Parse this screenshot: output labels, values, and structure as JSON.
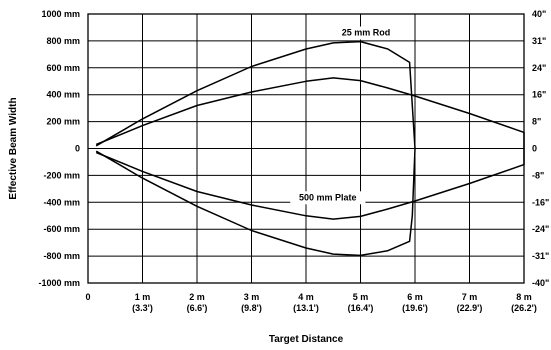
{
  "chart_data": {
    "type": "line",
    "xlabel": "Target Distance",
    "ylabel": "Effective Beam Width",
    "xlim": [
      0,
      8
    ],
    "ylim": [
      -1000,
      1000
    ],
    "grid": true,
    "x_ticks": [
      {
        "value": 0,
        "label": "0",
        "sub": ""
      },
      {
        "value": 1,
        "label": "1 m",
        "sub": "(3.3')"
      },
      {
        "value": 2,
        "label": "2 m",
        "sub": "(6.6')"
      },
      {
        "value": 3,
        "label": "3 m",
        "sub": "(9.8')"
      },
      {
        "value": 4,
        "label": "4 m",
        "sub": "(13.1')"
      },
      {
        "value": 5,
        "label": "5 m",
        "sub": "(16.4')"
      },
      {
        "value": 6,
        "label": "6 m",
        "sub": "(19.6')"
      },
      {
        "value": 7,
        "label": "7 m",
        "sub": "(22.9')"
      },
      {
        "value": 8,
        "label": "8 m",
        "sub": "(26.2')"
      }
    ],
    "y_ticks_left": [
      {
        "value": 1000,
        "label": "1000 mm"
      },
      {
        "value": 800,
        "label": "800 mm"
      },
      {
        "value": 600,
        "label": "600 mm"
      },
      {
        "value": 400,
        "label": "400 mm"
      },
      {
        "value": 200,
        "label": "200 mm"
      },
      {
        "value": 0,
        "label": "0"
      },
      {
        "value": -200,
        "label": "-200 mm"
      },
      {
        "value": -400,
        "label": "-400 mm"
      },
      {
        "value": -600,
        "label": "-600 mm"
      },
      {
        "value": -800,
        "label": "-800 mm"
      },
      {
        "value": -1000,
        "label": "-1000 mm"
      }
    ],
    "y_ticks_right": [
      {
        "value": 1000,
        "label": "40\""
      },
      {
        "value": 800,
        "label": "31\""
      },
      {
        "value": 600,
        "label": "24\""
      },
      {
        "value": 400,
        "label": "16\""
      },
      {
        "value": 200,
        "label": "8\""
      },
      {
        "value": 0,
        "label": "0"
      },
      {
        "value": -200,
        "label": "-8\""
      },
      {
        "value": -400,
        "label": "-16\""
      },
      {
        "value": -600,
        "label": "-24\""
      },
      {
        "value": -800,
        "label": "-31\""
      },
      {
        "value": -1000,
        "label": "-40\""
      }
    ],
    "series": [
      {
        "name": "25 mm Rod",
        "x": [
          0.15,
          1,
          2,
          3,
          4,
          4.5,
          5,
          5.5,
          5.9,
          5.95,
          6.0,
          5.9,
          5.5,
          5,
          4.5,
          4,
          3,
          2,
          1,
          0.15
        ],
        "y": [
          -20,
          -220,
          -430,
          -610,
          -740,
          -785,
          -795,
          -760,
          -690,
          -500,
          0,
          640,
          740,
          795,
          785,
          740,
          610,
          430,
          220,
          20
        ]
      },
      {
        "name": "500 mm Plate",
        "x": [
          0.15,
          1,
          2,
          3,
          4,
          4.5,
          5,
          5.5,
          6,
          7,
          8,
          8,
          7,
          6,
          5.5,
          5,
          4.5,
          4,
          3,
          2,
          1,
          0.15
        ],
        "y": [
          -30,
          -170,
          -320,
          -420,
          -500,
          -525,
          -505,
          -450,
          -390,
          -260,
          -120,
          120,
          260,
          390,
          450,
          505,
          525,
          500,
          420,
          320,
          170,
          30
        ]
      }
    ],
    "annotations": [
      {
        "text": "25 mm Rod",
        "x": 5.1,
        "y": 840
      },
      {
        "text": "500 mm Plate",
        "x": 4.4,
        "y": -385
      }
    ]
  }
}
